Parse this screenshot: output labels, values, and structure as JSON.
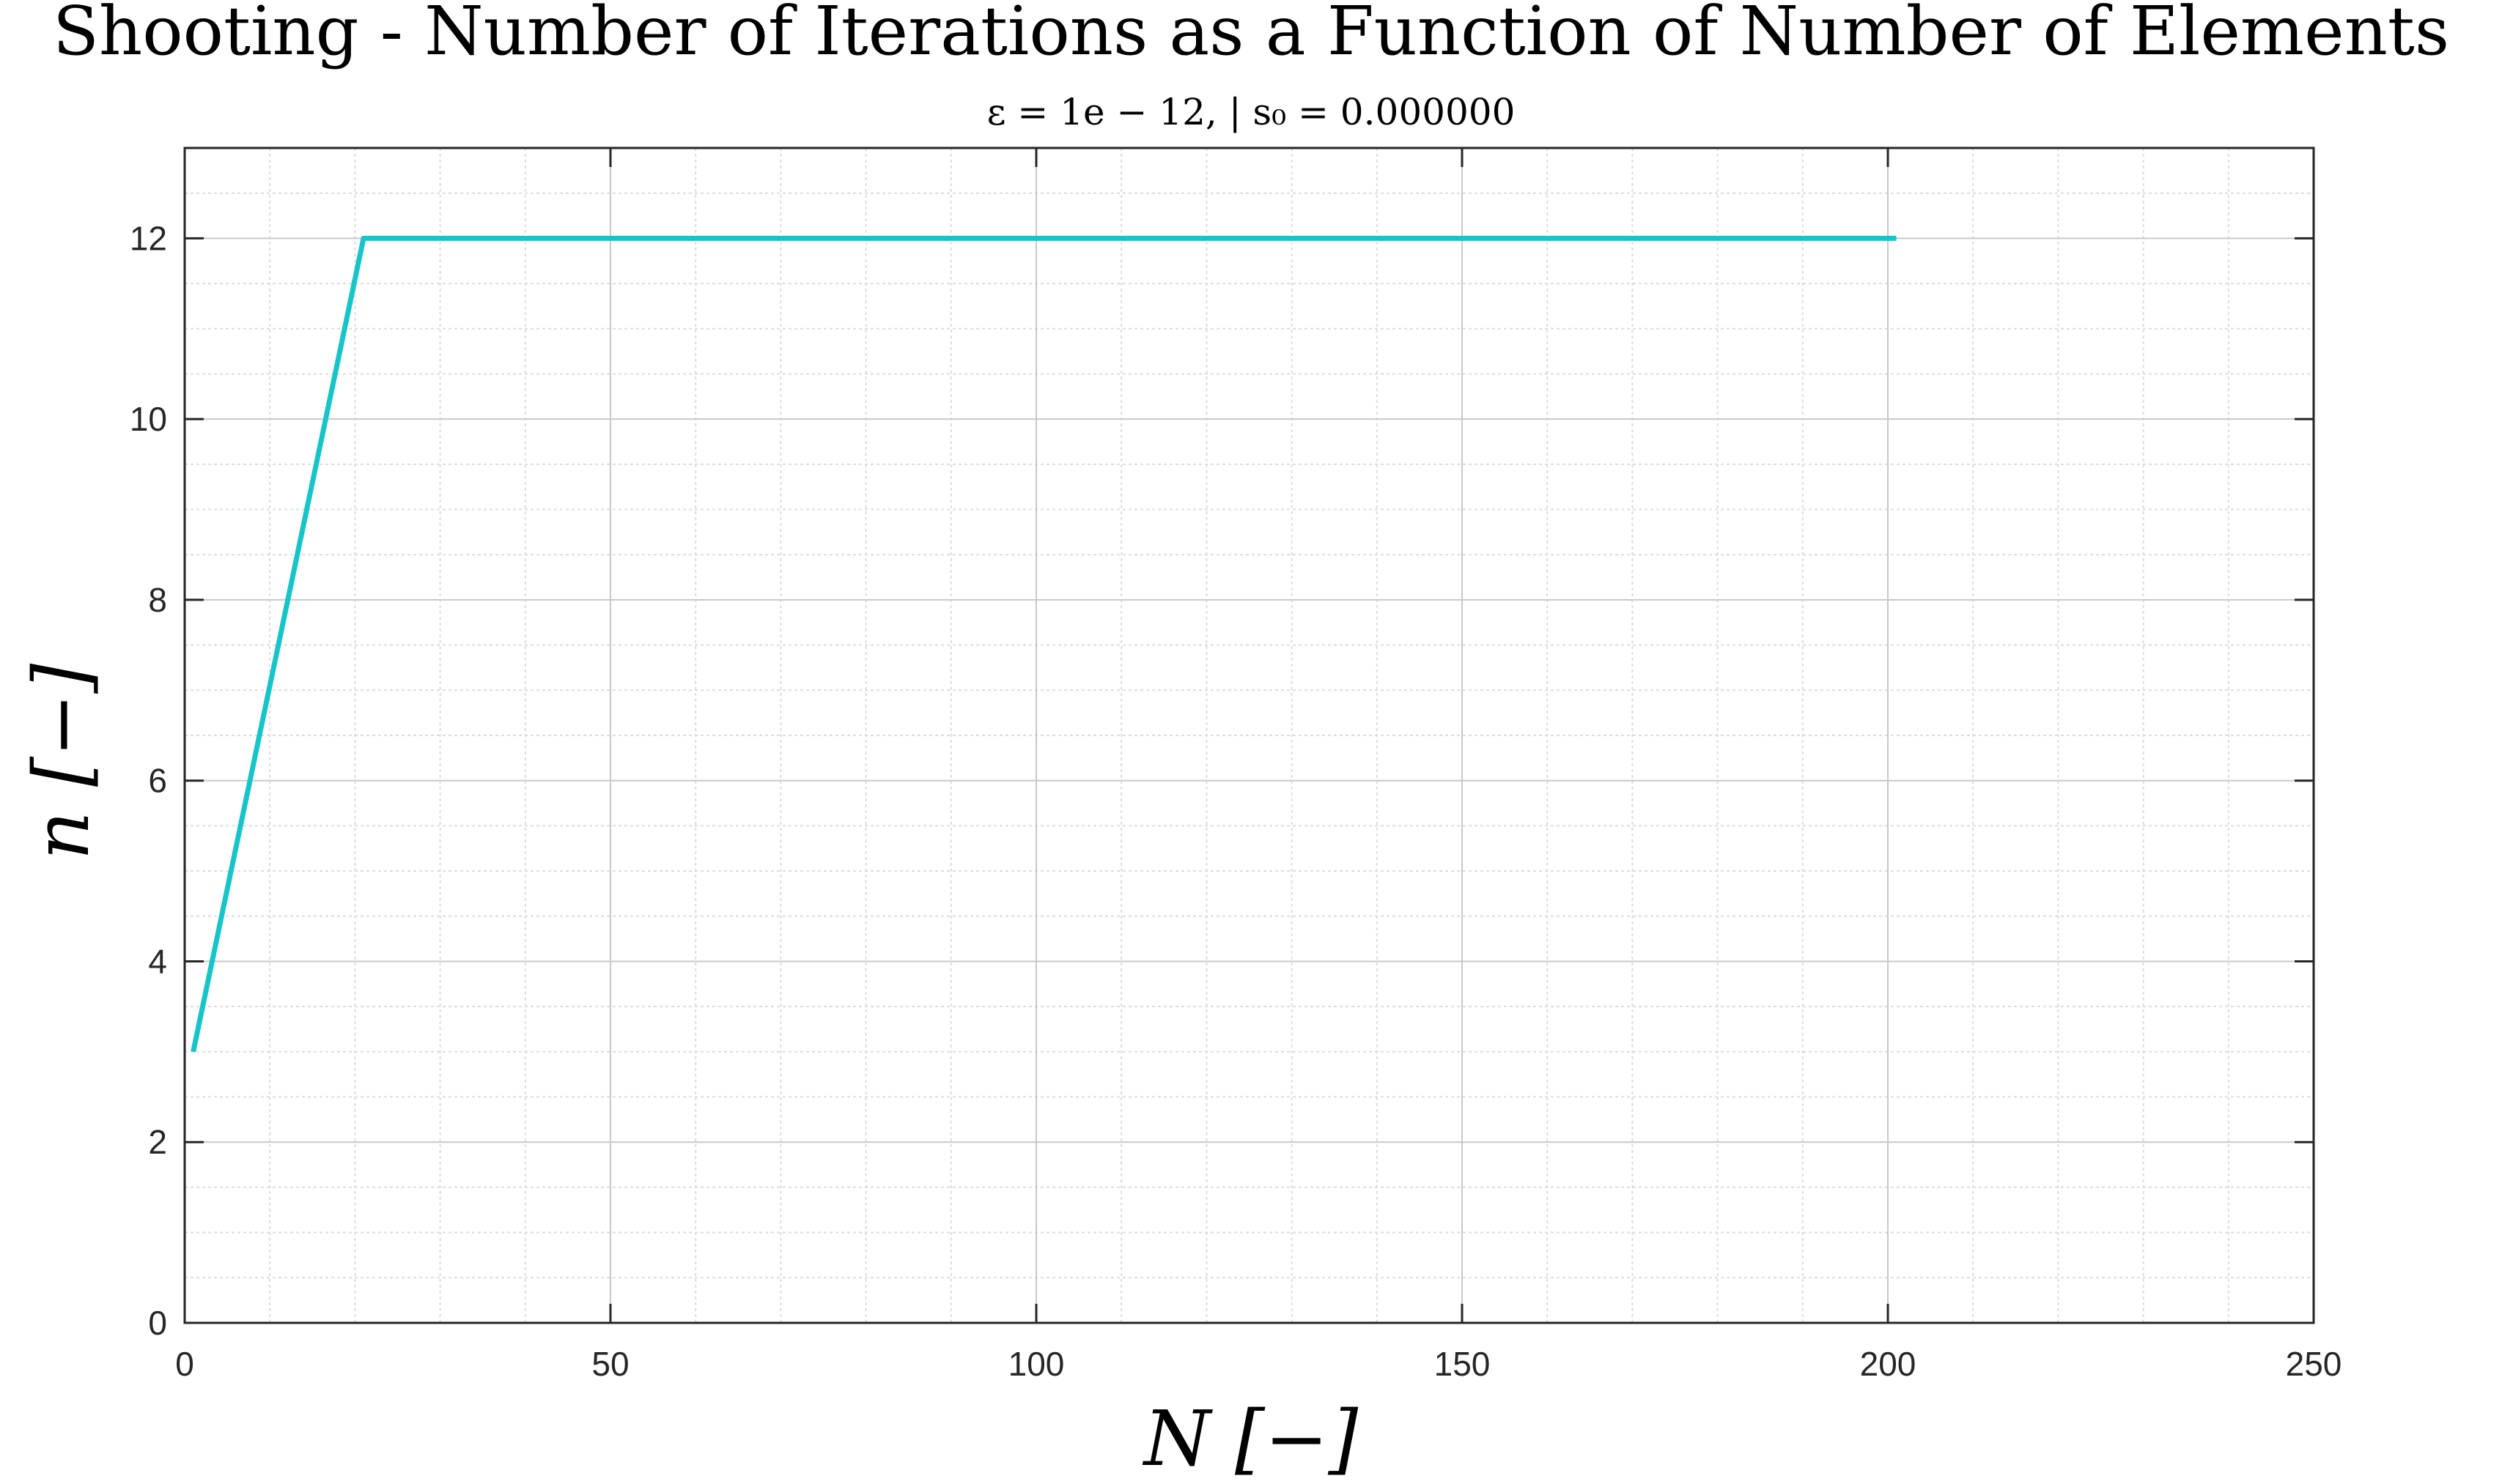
{
  "chart_data": {
    "type": "line",
    "title": "Shooting - Number of Iterations as a Function of Number of Elements",
    "subtitle": "ε = 1e − 12, | s₀ = 0.000000",
    "xlabel": "N [−]",
    "ylabel": "n [−]",
    "xlim": [
      0,
      250
    ],
    "ylim": [
      0,
      13
    ],
    "x_ticks": [
      0,
      50,
      100,
      150,
      200,
      250
    ],
    "y_ticks": [
      0,
      2,
      4,
      6,
      8,
      10,
      12
    ],
    "x_minor_step": 10,
    "y_minor_step": 0.5,
    "grid": true,
    "minor_grid": true,
    "series": [
      {
        "color": "#17c5c8",
        "x": [
          1,
          21,
          41,
          61,
          81,
          101,
          121,
          141,
          161,
          181,
          201
        ],
        "y": [
          3,
          12,
          12,
          12,
          12,
          12,
          12,
          12,
          12,
          12,
          12
        ]
      }
    ]
  }
}
